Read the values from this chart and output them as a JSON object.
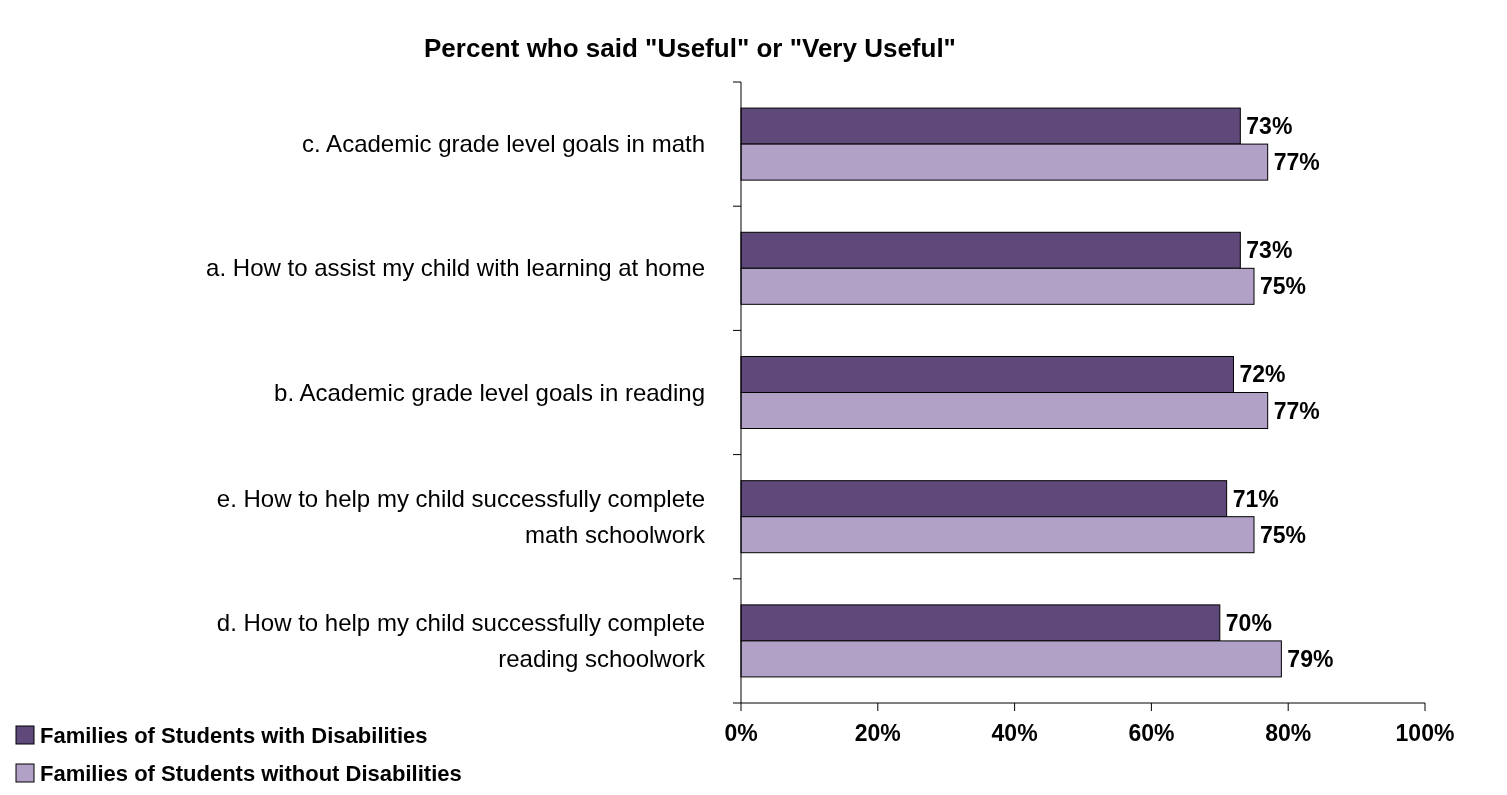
{
  "chart_data": {
    "type": "bar",
    "orientation": "horizontal",
    "title": "Percent who said \"Useful\" or \"Very Useful\"",
    "categories": [
      "c.  Academic grade level goals in math",
      "a.  How to assist my child with learning at home",
      "b.  Academic grade level goals in reading",
      "e.  How to help my child successfully complete math schoolwork",
      "d.  How to help my child successfully complete reading schoolwork"
    ],
    "series": [
      {
        "name": "Families of Students with Disabilities",
        "color": "#5f497a",
        "values": [
          73,
          73,
          72,
          71,
          70
        ],
        "value_labels": [
          "73%",
          "73%",
          "72%",
          "71%",
          "70%"
        ]
      },
      {
        "name": "Families of Students without Disabilities",
        "color": "#b2a1c7",
        "values": [
          77,
          75,
          77,
          75,
          79
        ],
        "value_labels": [
          "77%",
          "75%",
          "77%",
          "75%",
          "79%"
        ]
      }
    ],
    "xlim": [
      0,
      100
    ],
    "xticks": [
      {
        "value": 0,
        "label": "0%"
      },
      {
        "value": 20,
        "label": "20%"
      },
      {
        "value": 40,
        "label": "40%"
      },
      {
        "value": 60,
        "label": "60%"
      },
      {
        "value": 80,
        "label": "80%"
      },
      {
        "value": 100,
        "label": "100%"
      }
    ],
    "grid": false,
    "legend": "bottom left"
  }
}
